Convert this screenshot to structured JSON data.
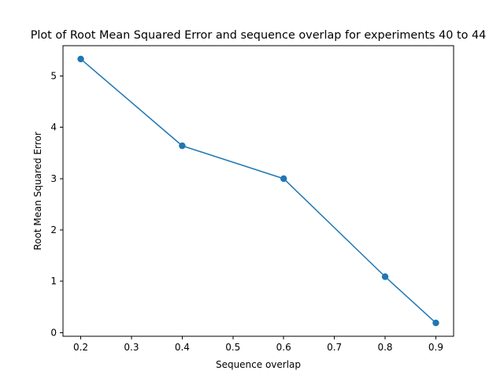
{
  "chart_data": {
    "type": "line",
    "title": "Plot of Root Mean Squared Error and sequence overlap for experiments 40 to 44",
    "xlabel": "Sequence overlap",
    "ylabel": "Root Mean Squared Error",
    "x": [
      0.2,
      0.4,
      0.6,
      0.8,
      0.9
    ],
    "series": [
      {
        "values": [
          5.33,
          3.64,
          3.0,
          1.09,
          0.19
        ]
      }
    ],
    "xlim": [
      0.165,
      0.935
    ],
    "ylim": [
      -0.07,
      5.59
    ],
    "xticks": [
      0.2,
      0.3,
      0.4,
      0.5,
      0.6,
      0.7,
      0.8,
      0.9
    ],
    "xtick_labels": [
      "0.2",
      "0.3",
      "0.4",
      "0.5",
      "0.6",
      "0.7",
      "0.8",
      "0.9"
    ],
    "yticks": [
      0,
      1,
      2,
      3,
      4,
      5
    ],
    "ytick_labels": [
      "0",
      "1",
      "2",
      "3",
      "4",
      "5"
    ],
    "grid": false,
    "line_color": "#1f77b4",
    "marker": "circle"
  }
}
